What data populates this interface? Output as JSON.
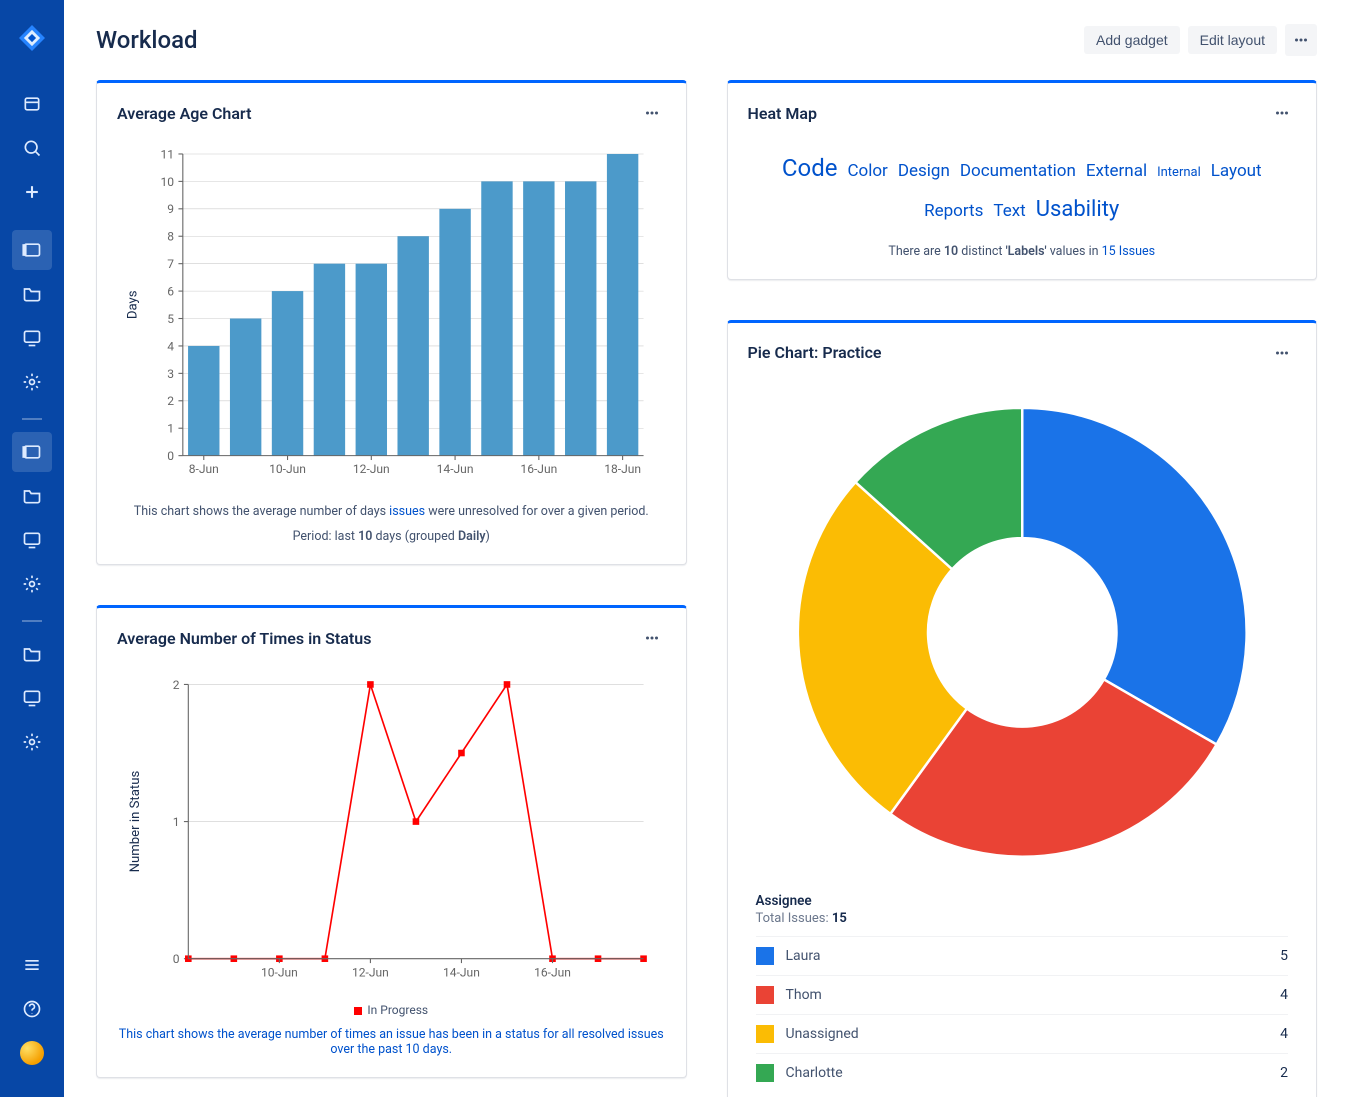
{
  "page": {
    "title": "Workload"
  },
  "header": {
    "add_gadget_label": "Add gadget",
    "edit_layout_label": "Edit layout"
  },
  "sidebar": {
    "icons_top": [
      "board-icon",
      "search-icon",
      "plus-icon"
    ],
    "group1": [
      "panel-icon",
      "folder-icon",
      "monitor-icon",
      "gear-icon"
    ],
    "group2": [
      "panel-icon",
      "folder-icon",
      "monitor-icon",
      "gear-icon"
    ],
    "group3": [
      "folder-icon",
      "monitor-icon",
      "gear-icon"
    ],
    "bottom": [
      "menu-icon",
      "help-icon",
      "avatar"
    ]
  },
  "age_chart": {
    "title": "Average Age Chart",
    "type": "bar",
    "y_label": "Days",
    "ylim": [
      0,
      11
    ],
    "ytick_step": 1,
    "x_labels": [
      "8-Jun",
      "10-Jun",
      "12-Jun",
      "14-Jun",
      "16-Jun",
      "18-Jun"
    ],
    "bar_count": 11,
    "values": [
      4,
      5,
      6,
      7,
      7,
      8,
      9,
      10,
      10,
      10,
      11
    ],
    "bar_color": "#4c9aca",
    "grid_color": "#cccccc",
    "axis_color": "#666666",
    "label_fontsize": 11,
    "caption_pre": "This chart shows the average number of days ",
    "caption_link": "issues",
    "caption_post": " were unresolved for over a given period.",
    "caption_line2_pre": "Period: last ",
    "caption_line2_bold": "10",
    "caption_line2_mid": " days (grouped ",
    "caption_line2_bold2": "Daily",
    "caption_line2_end": ")"
  },
  "status_chart": {
    "title": "Average Number of Times in Status",
    "type": "line",
    "y_label": "Number in Status",
    "ylim": [
      0,
      2
    ],
    "ytick_step": 1,
    "x_labels": [
      "10-Jun",
      "12-Jun",
      "14-Jun",
      "16-Jun"
    ],
    "points": [
      {
        "x_idx": 0,
        "y": 0
      },
      {
        "x_idx": 1,
        "y": 0
      },
      {
        "x_idx": 2,
        "y": 0
      },
      {
        "x_idx": 3,
        "y": 0
      },
      {
        "x_idx": 4,
        "y": 2
      },
      {
        "x_idx": 5,
        "y": 1
      },
      {
        "x_idx": 6,
        "y": 1.5
      },
      {
        "x_idx": 7,
        "y": 2
      },
      {
        "x_idx": 8,
        "y": 0
      },
      {
        "x_idx": 9,
        "y": 0
      },
      {
        "x_idx": 10,
        "y": 0
      }
    ],
    "line_color": "#ff0000",
    "marker_color": "#ff0000",
    "marker_style": "square",
    "marker_size": 6,
    "grid_color": "#cccccc",
    "axis_color": "#666666",
    "legend_label": "In Progress",
    "caption": "This chart shows the average number of times an issue has been in a status for all resolved issues over the past 10 days."
  },
  "heat_map": {
    "title": "Heat Map",
    "words": [
      {
        "label": "Code",
        "size": 24
      },
      {
        "label": "Color",
        "size": 17
      },
      {
        "label": "Design",
        "size": 17
      },
      {
        "label": "Documentation",
        "size": 17
      },
      {
        "label": "External",
        "size": 17
      },
      {
        "label": "Internal",
        "size": 13
      },
      {
        "label": "Layout",
        "size": 17
      },
      {
        "label": "Reports",
        "size": 17
      },
      {
        "label": "Text",
        "size": 17
      },
      {
        "label": "Usability",
        "size": 22
      }
    ],
    "link_color": "#0052cc",
    "sub_pre": "There are ",
    "sub_count": "10",
    "sub_mid": " distinct ",
    "sub_bold": "'Labels'",
    "sub_post1": " values in ",
    "sub_link_count": "15",
    "sub_link_label": " Issues"
  },
  "pie_chart": {
    "title": "Pie Chart: Practice",
    "type": "donut",
    "total_label": "Assignee",
    "total_pre": "Total Issues: ",
    "total_value": "15",
    "inner_radius_ratio": 0.42,
    "slices": [
      {
        "label": "Laura",
        "value": 5,
        "color": "#1a73e8"
      },
      {
        "label": "Thom",
        "value": 4,
        "color": "#ea4335"
      },
      {
        "label": "Unassigned",
        "value": 4,
        "color": "#fbbc04"
      },
      {
        "label": "Charlotte",
        "value": 2,
        "color": "#34a853"
      }
    ],
    "start_angle_deg": -90
  }
}
